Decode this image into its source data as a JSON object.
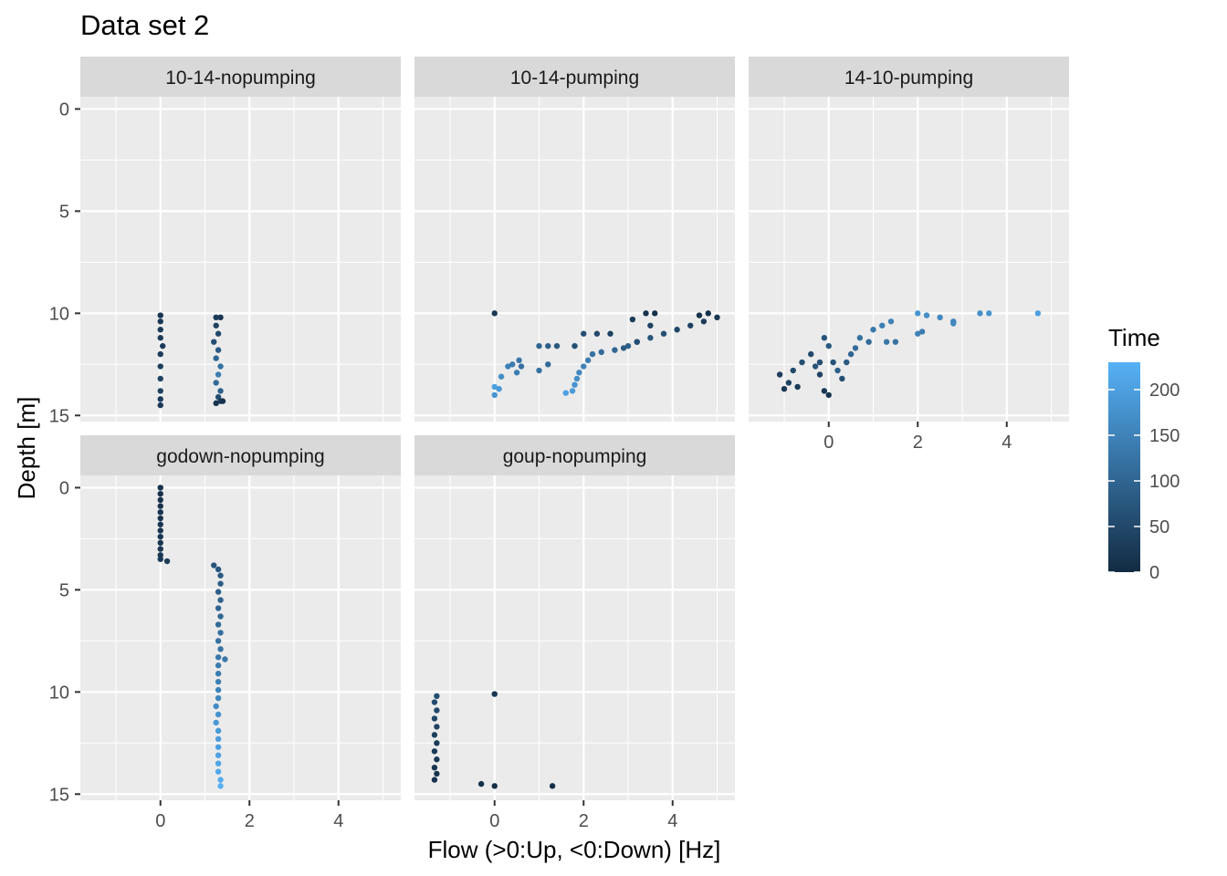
{
  "chart_data": {
    "type": "scatter",
    "title": "Data set 2",
    "xlabel": "Flow (>0:Up, <0:Down) [Hz]",
    "ylabel": "Depth [m]",
    "xlim": [
      -1.8,
      5.4
    ],
    "ylim": [
      15.3,
      -0.6
    ],
    "y_reversed": true,
    "x_ticks": [
      0,
      2,
      4
    ],
    "y_ticks": [
      0,
      5,
      10,
      15
    ],
    "grid": true,
    "legend": {
      "title": "Time",
      "type": "colorbar",
      "position": "right",
      "range": [
        0,
        230
      ],
      "ticks": [
        0,
        50,
        100,
        150,
        200
      ],
      "color_low": "#132B43",
      "color_high": "#56B1F7"
    },
    "panels": [
      {
        "label": "10-14-nopumping",
        "points": [
          [
            0,
            10.1,
            20
          ],
          [
            0,
            10.4,
            22
          ],
          [
            0,
            10.8,
            25
          ],
          [
            0,
            11.2,
            28
          ],
          [
            0.05,
            11.6,
            30
          ],
          [
            0,
            12.0,
            32
          ],
          [
            0,
            12.6,
            35
          ],
          [
            0,
            13.2,
            40
          ],
          [
            0,
            13.8,
            38
          ],
          [
            0,
            14.2,
            30
          ],
          [
            0,
            14.5,
            25
          ],
          [
            1.25,
            10.2,
            30
          ],
          [
            1.35,
            10.2,
            20
          ],
          [
            1.25,
            10.6,
            40
          ],
          [
            1.3,
            11.0,
            50
          ],
          [
            1.2,
            11.4,
            60
          ],
          [
            1.3,
            11.8,
            80
          ],
          [
            1.25,
            12.2,
            100
          ],
          [
            1.35,
            12.6,
            120
          ],
          [
            1.3,
            13.0,
            140
          ],
          [
            1.25,
            13.4,
            110
          ],
          [
            1.35,
            13.8,
            90
          ],
          [
            1.3,
            14.1,
            60
          ],
          [
            1.35,
            14.3,
            30
          ],
          [
            1.25,
            14.4,
            15
          ],
          [
            1.4,
            14.3,
            10
          ]
        ]
      },
      {
        "label": "10-14-pumping",
        "points": [
          [
            0,
            10.0,
            20
          ],
          [
            0,
            13.6,
            200
          ],
          [
            0.1,
            13.7,
            190
          ],
          [
            0,
            14.0,
            180
          ],
          [
            0.15,
            13.1,
            170
          ],
          [
            0.3,
            12.6,
            150
          ],
          [
            0.4,
            12.5,
            140
          ],
          [
            0.55,
            12.3,
            130
          ],
          [
            0.6,
            12.6,
            120
          ],
          [
            0.5,
            12.9,
            140
          ],
          [
            1.0,
            12.8,
            120
          ],
          [
            1.2,
            12.5,
            110
          ],
          [
            1.0,
            11.6,
            100
          ],
          [
            1.2,
            11.6,
            90
          ],
          [
            1.4,
            11.6,
            80
          ],
          [
            1.8,
            11.6,
            60
          ],
          [
            2.0,
            11.0,
            60
          ],
          [
            2.3,
            11.0,
            50
          ],
          [
            2.6,
            11.0,
            40
          ],
          [
            1.6,
            13.9,
            200
          ],
          [
            1.75,
            13.8,
            190
          ],
          [
            1.8,
            13.5,
            180
          ],
          [
            1.85,
            13.2,
            170
          ],
          [
            1.9,
            12.9,
            160
          ],
          [
            2.0,
            12.6,
            150
          ],
          [
            2.1,
            12.3,
            140
          ],
          [
            2.2,
            12.0,
            120
          ],
          [
            2.4,
            11.9,
            110
          ],
          [
            2.7,
            11.8,
            100
          ],
          [
            3.0,
            11.6,
            90
          ],
          [
            3.2,
            11.4,
            80
          ],
          [
            3.5,
            11.2,
            70
          ],
          [
            3.8,
            11.0,
            60
          ],
          [
            4.1,
            10.8,
            50
          ],
          [
            4.4,
            10.6,
            40
          ],
          [
            4.7,
            10.4,
            30
          ],
          [
            5.0,
            10.2,
            20
          ],
          [
            3.4,
            10.0,
            15
          ],
          [
            3.6,
            10.0,
            10
          ],
          [
            4.8,
            10.0,
            10
          ],
          [
            4.6,
            10.1,
            12
          ],
          [
            3.1,
            10.3,
            30
          ],
          [
            3.5,
            10.6,
            40
          ],
          [
            3.2,
            11.4,
            60
          ],
          [
            2.9,
            11.7,
            80
          ]
        ]
      },
      {
        "label": "14-10-pumping",
        "points": [
          [
            -1.1,
            13.0,
            30
          ],
          [
            -1.0,
            13.7,
            20
          ],
          [
            -0.9,
            13.4,
            40
          ],
          [
            -0.7,
            13.6,
            30
          ],
          [
            -0.8,
            12.8,
            50
          ],
          [
            -0.6,
            12.4,
            60
          ],
          [
            -0.4,
            12.0,
            50
          ],
          [
            -0.3,
            12.6,
            70
          ],
          [
            -0.2,
            13.0,
            40
          ],
          [
            -0.1,
            13.8,
            20
          ],
          [
            0,
            14.0,
            15
          ],
          [
            -0.2,
            12.4,
            60
          ],
          [
            0.1,
            12.4,
            70
          ],
          [
            0.2,
            12.8,
            90
          ],
          [
            0.3,
            13.2,
            60
          ],
          [
            0.4,
            12.4,
            80
          ],
          [
            0.5,
            12.0,
            100
          ],
          [
            0.6,
            11.7,
            110
          ],
          [
            0.7,
            11.2,
            120
          ],
          [
            0.9,
            11.4,
            110
          ],
          [
            1.0,
            10.8,
            130
          ],
          [
            1.2,
            10.6,
            140
          ],
          [
            1.4,
            10.4,
            150
          ],
          [
            1.5,
            11.4,
            120
          ],
          [
            1.3,
            11.4,
            130
          ],
          [
            0.0,
            11.6,
            80
          ],
          [
            -0.1,
            11.2,
            70
          ],
          [
            2.0,
            10.0,
            180
          ],
          [
            2.2,
            10.1,
            170
          ],
          [
            2.5,
            10.2,
            160
          ],
          [
            2.8,
            10.4,
            150
          ],
          [
            3.4,
            10.0,
            170
          ],
          [
            3.6,
            10.0,
            180
          ],
          [
            4.7,
            10.0,
            200
          ],
          [
            2.0,
            11.0,
            150
          ],
          [
            2.1,
            10.9,
            140
          ],
          [
            2.8,
            10.5,
            160
          ]
        ]
      },
      {
        "label": "godown-nopumping",
        "points": [
          [
            0,
            0,
            10
          ],
          [
            0,
            0.3,
            10
          ],
          [
            0,
            0.6,
            12
          ],
          [
            0,
            0.9,
            12
          ],
          [
            0,
            1.2,
            14
          ],
          [
            0,
            1.5,
            14
          ],
          [
            0,
            1.8,
            16
          ],
          [
            0,
            2.1,
            16
          ],
          [
            0,
            2.4,
            18
          ],
          [
            0,
            2.7,
            18
          ],
          [
            0,
            3.0,
            20
          ],
          [
            0,
            3.3,
            22
          ],
          [
            0,
            3.5,
            24
          ],
          [
            0.15,
            3.6,
            30
          ],
          [
            1.2,
            3.8,
            70
          ],
          [
            1.3,
            4.0,
            75
          ],
          [
            1.35,
            4.3,
            80
          ],
          [
            1.35,
            4.7,
            85
          ],
          [
            1.3,
            5.1,
            90
          ],
          [
            1.35,
            5.5,
            95
          ],
          [
            1.3,
            5.9,
            100
          ],
          [
            1.35,
            6.3,
            105
          ],
          [
            1.3,
            6.7,
            110
          ],
          [
            1.35,
            7.1,
            115
          ],
          [
            1.3,
            7.5,
            120
          ],
          [
            1.35,
            7.9,
            125
          ],
          [
            1.3,
            8.3,
            130
          ],
          [
            1.45,
            8.4,
            130
          ],
          [
            1.3,
            8.7,
            135
          ],
          [
            1.3,
            9.1,
            140
          ],
          [
            1.3,
            9.5,
            145
          ],
          [
            1.3,
            9.9,
            150
          ],
          [
            1.3,
            10.3,
            155
          ],
          [
            1.25,
            10.7,
            165
          ],
          [
            1.3,
            11.1,
            175
          ],
          [
            1.25,
            11.5,
            185
          ],
          [
            1.3,
            11.9,
            190
          ],
          [
            1.3,
            12.3,
            195
          ],
          [
            1.3,
            12.7,
            200
          ],
          [
            1.3,
            13.1,
            205
          ],
          [
            1.3,
            13.5,
            210
          ],
          [
            1.3,
            13.9,
            215
          ],
          [
            1.35,
            14.3,
            222
          ],
          [
            1.35,
            14.6,
            228
          ]
        ]
      },
      {
        "label": "goup-nopumping",
        "points": [
          [
            -1.3,
            10.2,
            60
          ],
          [
            -1.35,
            10.5,
            55
          ],
          [
            -1.3,
            10.9,
            50
          ],
          [
            -1.35,
            11.3,
            45
          ],
          [
            -1.3,
            11.7,
            40
          ],
          [
            -1.35,
            12.1,
            35
          ],
          [
            -1.3,
            12.5,
            30
          ],
          [
            -1.35,
            12.9,
            25
          ],
          [
            -1.3,
            13.3,
            20
          ],
          [
            -1.35,
            13.7,
            15
          ],
          [
            -1.3,
            14.0,
            12
          ],
          [
            -1.35,
            14.3,
            10
          ],
          [
            -0.3,
            14.5,
            10
          ],
          [
            0,
            14.6,
            8
          ],
          [
            1.3,
            14.6,
            6
          ],
          [
            0,
            10.1,
            20
          ]
        ]
      }
    ]
  }
}
